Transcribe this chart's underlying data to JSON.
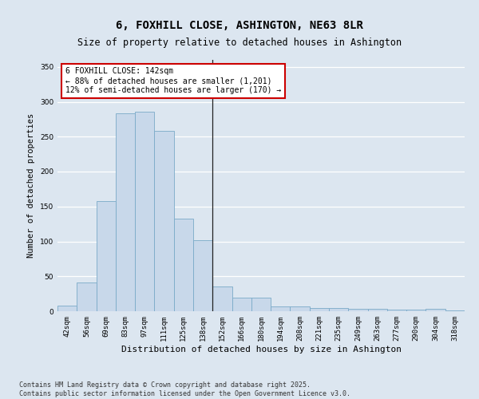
{
  "title": "6, FOXHILL CLOSE, ASHINGTON, NE63 8LR",
  "subtitle": "Size of property relative to detached houses in Ashington",
  "xlabel": "Distribution of detached houses by size in Ashington",
  "ylabel": "Number of detached properties",
  "categories": [
    "42sqm",
    "56sqm",
    "69sqm",
    "83sqm",
    "97sqm",
    "111sqm",
    "125sqm",
    "138sqm",
    "152sqm",
    "166sqm",
    "180sqm",
    "194sqm",
    "208sqm",
    "221sqm",
    "235sqm",
    "249sqm",
    "263sqm",
    "277sqm",
    "290sqm",
    "304sqm",
    "318sqm"
  ],
  "values": [
    8,
    41,
    158,
    284,
    286,
    258,
    133,
    102,
    35,
    20,
    20,
    7,
    7,
    5,
    5,
    4,
    3,
    2,
    2,
    3,
    1
  ],
  "bar_color": "#c8d8ea",
  "bar_edge_color": "#7aaac8",
  "vline_position": 7.5,
  "vline_color": "#222222",
  "annotation_text": "6 FOXHILL CLOSE: 142sqm\n← 88% of detached houses are smaller (1,201)\n12% of semi-detached houses are larger (170) →",
  "annotation_box_color": "white",
  "annotation_box_edge_color": "#cc0000",
  "ylim": [
    0,
    360
  ],
  "yticks": [
    0,
    50,
    100,
    150,
    200,
    250,
    300,
    350
  ],
  "background_color": "#dce6f0",
  "grid_color": "white",
  "footer_text": "Contains HM Land Registry data © Crown copyright and database right 2025.\nContains public sector information licensed under the Open Government Licence v3.0.",
  "title_fontsize": 10,
  "subtitle_fontsize": 8.5,
  "xlabel_fontsize": 8,
  "ylabel_fontsize": 7.5,
  "tick_fontsize": 6.5,
  "annotation_fontsize": 7,
  "footer_fontsize": 6
}
